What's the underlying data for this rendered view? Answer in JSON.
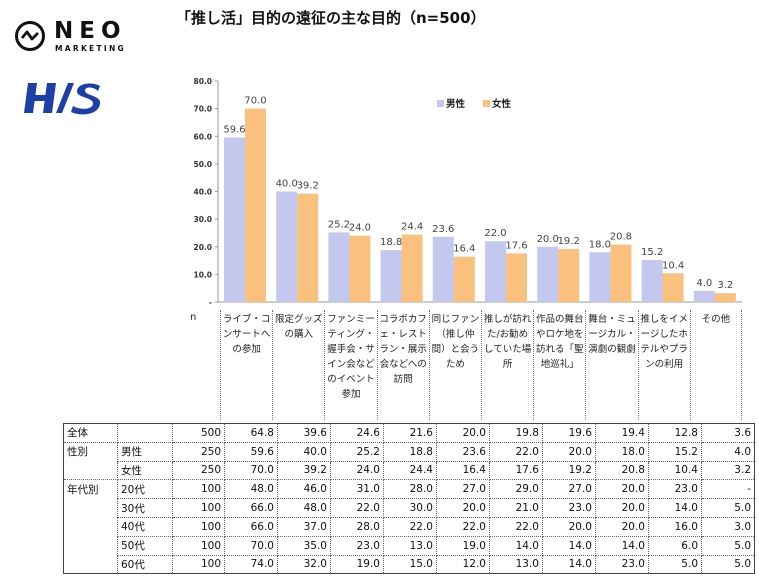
{
  "brand": {
    "neo_name": "NEO",
    "neo_sub": "MARKETING",
    "his_name": "H/S",
    "neo_color": "#111111",
    "his_color": "#1c3fa8"
  },
  "chart_data": {
    "type": "bar",
    "title": "「推し活」目的の遠征の主な目的（n=500）",
    "categories": [
      "ライブ・コンサートへの参加",
      "限定グッズの購入",
      "ファンミーティング・握手会・サイン会などのイベント参加",
      "コラボカフェ・レストラン・展示会などへの訪問",
      "同じファン（推し仲間）と会うため",
      "推しが訪れた/お勧めしていた場所",
      "作品の舞台やロケ地を訪れる「聖地巡礼」",
      "舞台・ミュージカル・演劇の観劇",
      "推しをイメージしたホテルやプランの利用",
      "その他"
    ],
    "series": [
      {
        "name": "男性",
        "color": "#c5c8ee",
        "values": [
          59.6,
          40.0,
          25.2,
          18.8,
          23.6,
          22.0,
          20.0,
          18.0,
          15.2,
          4.0
        ]
      },
      {
        "name": "女性",
        "color": "#f9c07e",
        "values": [
          70.0,
          39.2,
          24.0,
          24.4,
          16.4,
          17.6,
          19.2,
          20.8,
          10.4,
          3.2
        ]
      }
    ],
    "ylim": [
      0,
      80
    ],
    "yticks": [
      "-",
      "10.0",
      "20.0",
      "30.0",
      "40.0",
      "50.0",
      "60.0",
      "70.0",
      "80.0"
    ],
    "legend": "top-right",
    "grid": false
  },
  "table": {
    "n_header": "n",
    "rows": [
      {
        "group": "全体",
        "sub": "",
        "n": "500",
        "values": [
          "64.8",
          "39.6",
          "24.6",
          "21.6",
          "20.0",
          "19.8",
          "19.6",
          "19.4",
          "12.8",
          "3.6"
        ]
      },
      {
        "group": "性別",
        "sub": "男性",
        "n": "250",
        "values": [
          "59.6",
          "40.0",
          "25.2",
          "18.8",
          "23.6",
          "22.0",
          "20.0",
          "18.0",
          "15.2",
          "4.0"
        ]
      },
      {
        "group": "",
        "sub": "女性",
        "n": "250",
        "values": [
          "70.0",
          "39.2",
          "24.0",
          "24.4",
          "16.4",
          "17.6",
          "19.2",
          "20.8",
          "10.4",
          "3.2"
        ]
      },
      {
        "group": "年代別",
        "sub": "20代",
        "n": "100",
        "values": [
          "48.0",
          "46.0",
          "31.0",
          "28.0",
          "27.0",
          "29.0",
          "27.0",
          "20.0",
          "23.0",
          "-"
        ]
      },
      {
        "group": "",
        "sub": "30代",
        "n": "100",
        "values": [
          "66.0",
          "48.0",
          "22.0",
          "30.0",
          "20.0",
          "21.0",
          "23.0",
          "20.0",
          "14.0",
          "5.0"
        ]
      },
      {
        "group": "",
        "sub": "40代",
        "n": "100",
        "values": [
          "66.0",
          "37.0",
          "28.0",
          "22.0",
          "22.0",
          "22.0",
          "20.0",
          "20.0",
          "16.0",
          "3.0"
        ]
      },
      {
        "group": "",
        "sub": "50代",
        "n": "100",
        "values": [
          "70.0",
          "35.0",
          "23.0",
          "13.0",
          "19.0",
          "14.0",
          "14.0",
          "14.0",
          "6.0",
          "5.0"
        ]
      },
      {
        "group": "",
        "sub": "60代",
        "n": "100",
        "values": [
          "74.0",
          "32.0",
          "19.0",
          "15.0",
          "12.0",
          "13.0",
          "14.0",
          "23.0",
          "5.0",
          "5.0"
        ]
      }
    ]
  }
}
